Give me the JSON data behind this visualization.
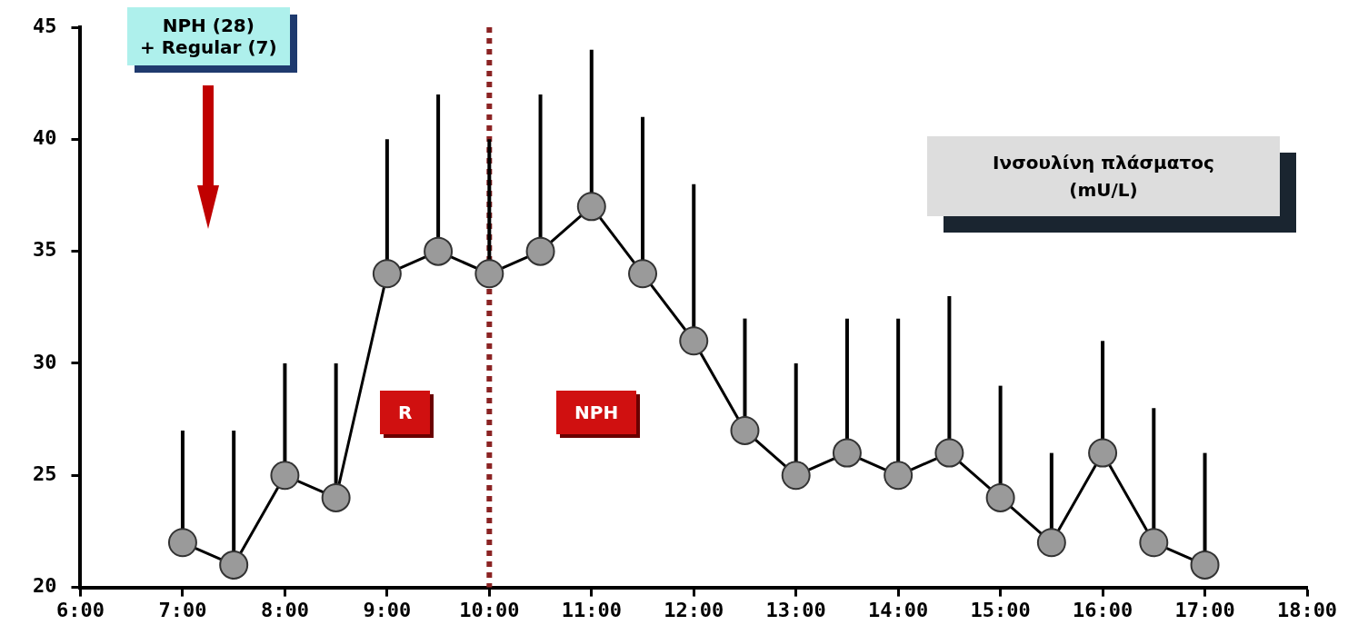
{
  "chart_data": {
    "type": "line",
    "title": "Ινσουλίνη πλάσματος (mU/L)",
    "x": [
      7,
      7.5,
      8,
      8.5,
      9,
      9.5,
      10,
      10.5,
      11,
      11.5,
      12,
      12.5,
      13,
      13.5,
      14,
      14.5,
      15,
      15.5,
      16,
      16.5,
      17
    ],
    "series": [
      {
        "color": "#000000",
        "values": [
          22,
          21,
          25,
          24,
          34,
          35,
          34,
          35,
          37,
          34,
          31,
          27,
          25,
          26,
          25,
          26,
          24,
          22,
          26,
          22,
          21
        ],
        "errors": [
          [
            22,
            27
          ],
          [
            21,
            27
          ],
          [
            25,
            30
          ],
          [
            24,
            30
          ],
          [
            34,
            40
          ],
          [
            35,
            42
          ],
          [
            34,
            40
          ],
          [
            35,
            42
          ],
          [
            37,
            44
          ],
          [
            34,
            41
          ],
          [
            31,
            38
          ],
          [
            27,
            32
          ],
          [
            25,
            30
          ],
          [
            26,
            32
          ],
          [
            25,
            32
          ],
          [
            26,
            33
          ],
          [
            24,
            29
          ],
          [
            22,
            26
          ],
          [
            26,
            31
          ],
          [
            22,
            28
          ],
          [
            21,
            26
          ]
        ]
      }
    ],
    "xlim": [
      6,
      18
    ],
    "xticks": [
      {
        "value": 6,
        "label": "6:00"
      },
      {
        "value": 7,
        "label": "7:00"
      },
      {
        "value": 8,
        "label": "8:00"
      },
      {
        "value": 9,
        "label": "9:00"
      },
      {
        "value": 10,
        "label": "10:00"
      },
      {
        "value": 11,
        "label": "11:00"
      },
      {
        "value": 12,
        "label": "12:00"
      },
      {
        "value": 13,
        "label": "13:00"
      },
      {
        "value": 14,
        "label": "14:00"
      },
      {
        "value": 15,
        "label": "15:00"
      },
      {
        "value": 16,
        "label": "16:00"
      },
      {
        "value": 17,
        "label": "17:00"
      },
      {
        "value": 18,
        "label": "18:00"
      }
    ],
    "ylim": [
      20,
      45
    ],
    "yticks": [
      20,
      25,
      30,
      35,
      40,
      45
    ],
    "grid": false,
    "legend": false,
    "marker": "circle",
    "line_style": "solid",
    "ref_lines": [
      {
        "axis": "x",
        "value": 10,
        "color": "#8b2323",
        "line_style": "dotted"
      }
    ],
    "annotations": [
      "NPH (28)\n+ Regular (7)",
      "R",
      "NPH"
    ]
  }
}
